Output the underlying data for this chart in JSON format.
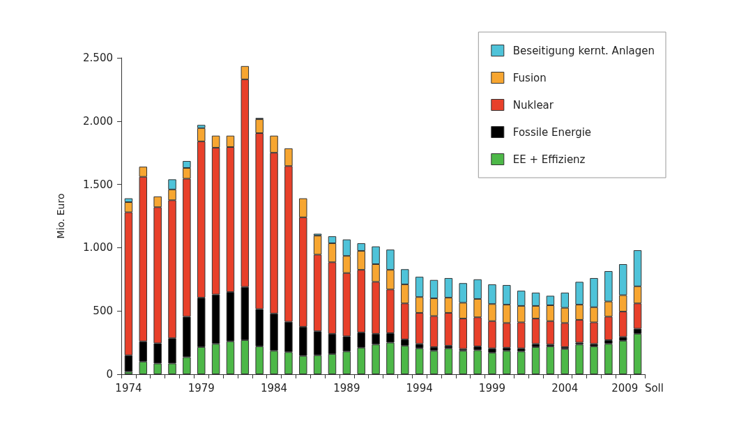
{
  "chart_data": {
    "type": "bar",
    "stacked": true,
    "ylabel": "Mio. Euro",
    "categories": [
      "1974",
      null,
      null,
      null,
      null,
      "1979",
      null,
      null,
      null,
      null,
      "1984",
      null,
      null,
      null,
      null,
      "1989",
      null,
      null,
      null,
      null,
      "1994",
      null,
      null,
      null,
      null,
      "1999",
      null,
      null,
      null,
      null,
      "2004",
      null,
      null,
      null,
      null,
      "2009  Soll"
    ],
    "series": [
      {
        "name": "EE + Effizienz",
        "color": "#4db848",
        "values": [
          20,
          100,
          85,
          85,
          135,
          215,
          240,
          260,
          270,
          220,
          185,
          175,
          145,
          150,
          160,
          180,
          210,
          235,
          250,
          225,
          205,
          185,
          205,
          185,
          190,
          170,
          185,
          180,
          215,
          220,
          200,
          235,
          220,
          240,
          265,
          320
        ]
      },
      {
        "name": "Fossile Energie",
        "color": "#000000",
        "values": [
          130,
          160,
          160,
          200,
          320,
          390,
          390,
          390,
          420,
          295,
          295,
          240,
          230,
          190,
          160,
          120,
          120,
          85,
          75,
          50,
          35,
          30,
          20,
          15,
          30,
          35,
          25,
          25,
          25,
          15,
          15,
          15,
          20,
          30,
          30,
          40
        ]
      },
      {
        "name": "Nuklear",
        "color": "#e8402a",
        "values": [
          1130,
          1300,
          1075,
          1090,
          1090,
          1235,
          1160,
          1145,
          1640,
          1390,
          1270,
          1230,
          865,
          605,
          565,
          500,
          495,
          410,
          345,
          285,
          245,
          245,
          260,
          240,
          230,
          215,
          195,
          205,
          200,
          185,
          190,
          180,
          170,
          185,
          200,
          200
        ]
      },
      {
        "name": "Fusion",
        "color": "#f7a631",
        "values": [
          80,
          80,
          85,
          85,
          85,
          105,
          95,
          90,
          105,
          110,
          135,
          140,
          150,
          150,
          150,
          135,
          150,
          140,
          155,
          150,
          125,
          140,
          120,
          125,
          145,
          135,
          145,
          130,
          100,
          125,
          120,
          120,
          120,
          120,
          130,
          135
        ]
      },
      {
        "name": "Beseitigung kernt. Anlagen",
        "color": "#4fc3d9",
        "values": [
          30,
          null,
          null,
          80,
          55,
          25,
          null,
          null,
          null,
          10,
          null,
          null,
          null,
          15,
          55,
          130,
          60,
          140,
          160,
          120,
          160,
          145,
          155,
          155,
          155,
          155,
          155,
          120,
          105,
          75,
          120,
          180,
          230,
          240,
          245,
          285
        ]
      }
    ],
    "ylim": [
      0,
      2500
    ],
    "yticks": [
      0,
      500,
      {
        "value": 1000,
        "label": "1.000"
      },
      {
        "value": 1500,
        "label": "1.500"
      },
      {
        "value": 2000,
        "label": "2.000"
      },
      {
        "value": 2500,
        "label": "2.500"
      }
    ],
    "grid": false,
    "legend": "top right"
  }
}
